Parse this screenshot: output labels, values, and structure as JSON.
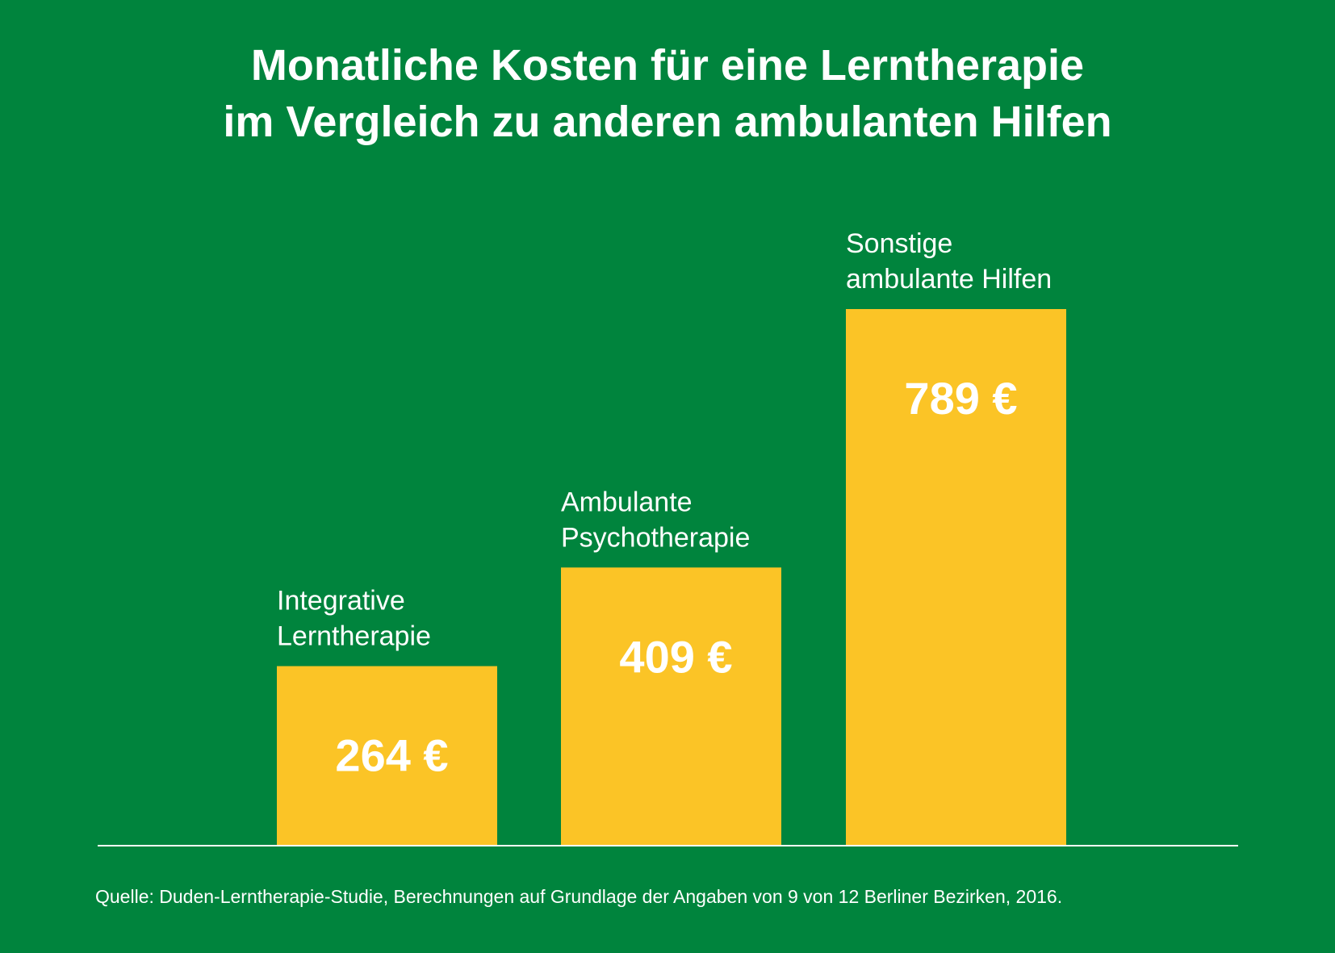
{
  "colors": {
    "background": "#00843d",
    "bar": "#fbc426",
    "text": "#ffffff",
    "baseline": "#ffffff"
  },
  "title": {
    "line1": "Monatliche Kosten für eine Lerntherapie",
    "line2": "im Vergleich zu anderen ambulanten Hilfen"
  },
  "source": "Quelle: Duden-Lerntherapie-Studie, Berechnungen auf Grundlage der Angaben von 9 von 12 Berliner Bezirken, 2016.",
  "chart_data": {
    "type": "bar",
    "categories": [
      [
        "Integrative",
        "Lerntherapie"
      ],
      [
        "Ambulante",
        "Psychotherapie"
      ],
      [
        "Sonstige",
        "ambulante Hilfen"
      ]
    ],
    "values": [
      264,
      409,
      789
    ],
    "value_labels": [
      "264 €",
      "409 €",
      "789 €"
    ],
    "unit": "€",
    "ylim": [
      0,
      789
    ],
    "grid": false,
    "legend": "none",
    "axes_visible": false
  }
}
